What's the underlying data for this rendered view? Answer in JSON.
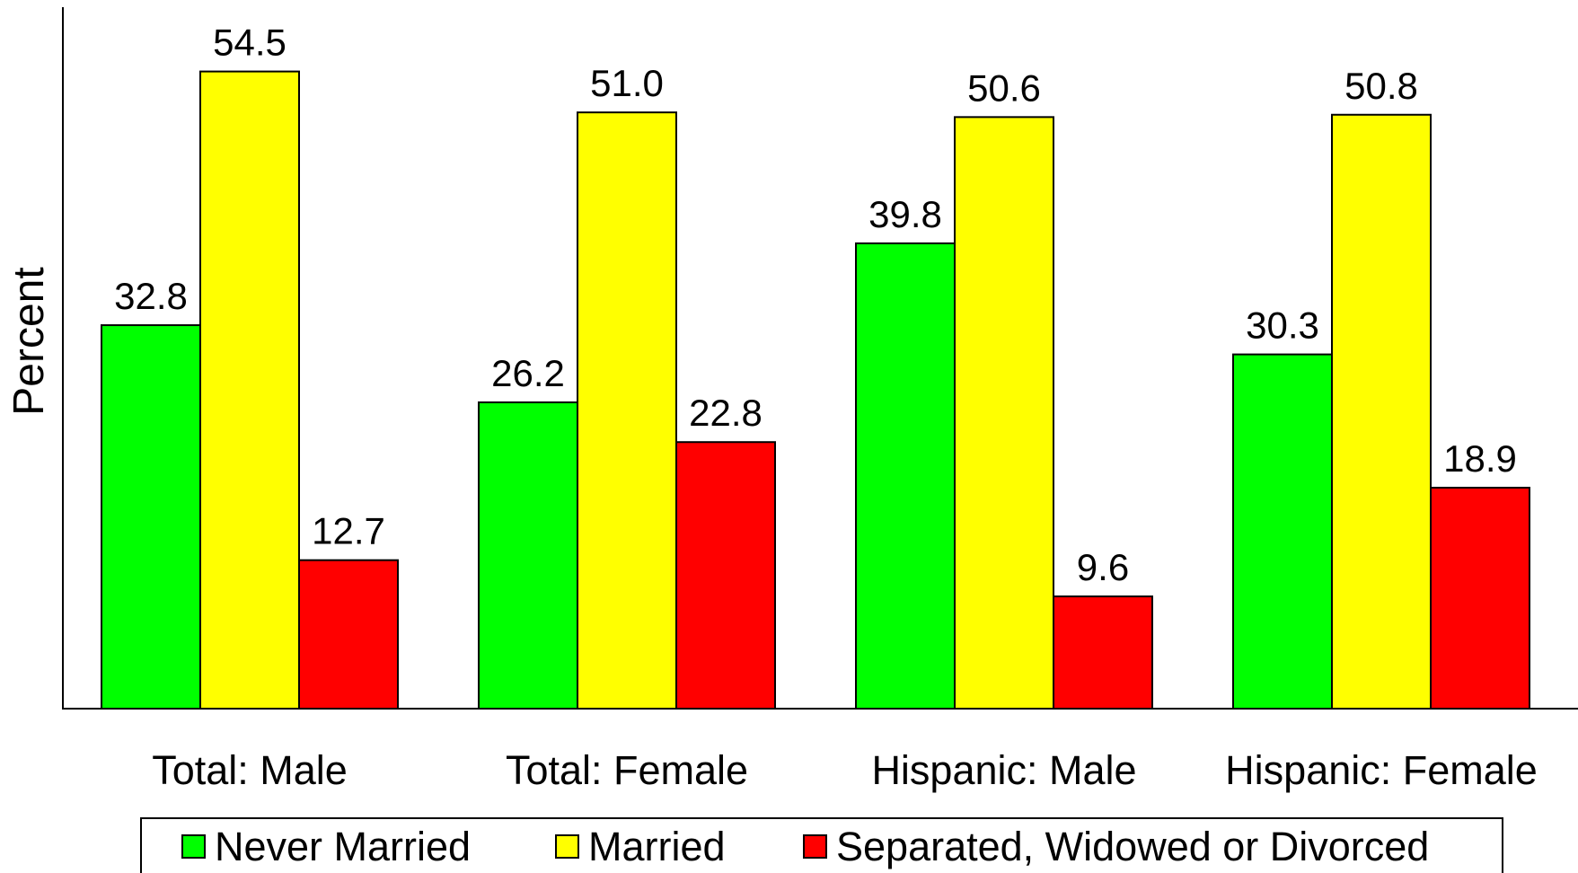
{
  "chart_data": {
    "type": "bar",
    "title": "",
    "xlabel": "",
    "ylabel": "Percent",
    "ylim": [
      0,
      60
    ],
    "grid": false,
    "legend_position": "bottom",
    "categories": [
      "Total: Male",
      "Total: Female",
      "Hispanic: Male",
      "Hispanic: Female"
    ],
    "series": [
      {
        "name": "Never Married",
        "color": "#00ff00",
        "values": [
          32.8,
          26.2,
          39.8,
          30.3
        ],
        "labels": [
          "32.8",
          "26.2",
          "39.8",
          "30.3"
        ]
      },
      {
        "name": "Married",
        "color": "#ffff00",
        "values": [
          54.5,
          51.0,
          50.6,
          50.8
        ],
        "labels": [
          "54.5",
          "51.0",
          "50.6",
          "50.8"
        ]
      },
      {
        "name": "Separated, Widowed or Divorced",
        "color": "#ff0000",
        "values": [
          12.7,
          22.8,
          9.6,
          18.9
        ],
        "labels": [
          "12.7",
          "22.8",
          "9.6",
          "18.9"
        ]
      }
    ]
  }
}
